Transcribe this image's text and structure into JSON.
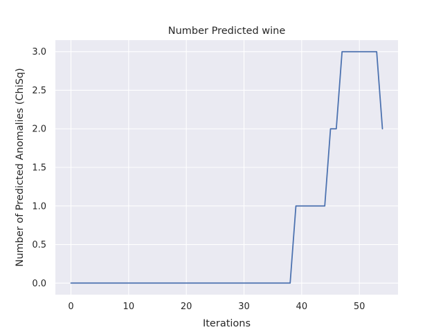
{
  "chart_data": {
    "type": "line",
    "title": "Number Predicted wine",
    "xlabel": "Iterations",
    "ylabel": "Number of Predicted Anomalies (ChiSq)",
    "xlim": [
      -2.7,
      56.7
    ],
    "ylim": [
      -0.15,
      3.15
    ],
    "xticks": [
      0,
      10,
      20,
      30,
      40,
      50
    ],
    "xtick_labels": [
      "0",
      "10",
      "20",
      "30",
      "40",
      "50"
    ],
    "yticks": [
      0,
      0.5,
      1,
      1.5,
      2,
      2.5,
      3
    ],
    "ytick_labels": [
      "0.0",
      "0.5",
      "1.0",
      "1.5",
      "2.0",
      "2.5",
      "3.0"
    ],
    "grid": true,
    "background": "#eaeaf2",
    "grid_color": "#ffffff",
    "series": [
      {
        "color": "#4c72b0",
        "x": [
          0,
          1,
          2,
          3,
          4,
          5,
          6,
          7,
          8,
          9,
          10,
          11,
          12,
          13,
          14,
          15,
          16,
          17,
          18,
          19,
          20,
          21,
          22,
          23,
          24,
          25,
          26,
          27,
          28,
          29,
          30,
          31,
          32,
          33,
          34,
          35,
          36,
          37,
          38,
          39,
          40,
          41,
          42,
          43,
          44,
          45,
          46,
          47,
          48,
          49,
          50,
          51,
          52,
          53,
          54
        ],
        "y": [
          0,
          0,
          0,
          0,
          0,
          0,
          0,
          0,
          0,
          0,
          0,
          0,
          0,
          0,
          0,
          0,
          0,
          0,
          0,
          0,
          0,
          0,
          0,
          0,
          0,
          0,
          0,
          0,
          0,
          0,
          0,
          0,
          0,
          0,
          0,
          0,
          0,
          0,
          0,
          1,
          1,
          1,
          1,
          1,
          1,
          2,
          2,
          3,
          3,
          3,
          3,
          3,
          3,
          3,
          2
        ]
      }
    ]
  }
}
